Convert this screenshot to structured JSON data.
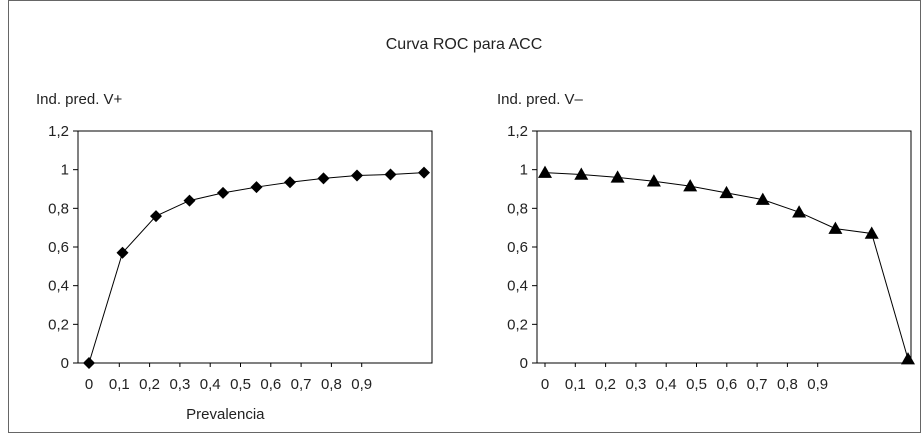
{
  "figure_title": "Curva ROC para ACC",
  "chart_data": [
    {
      "type": "line",
      "ylabel": "Ind. pred. V+",
      "xlabel": "Prevalencia",
      "ylim": [
        0,
        1.2
      ],
      "yticks": [
        "0",
        "0,2",
        "0,4",
        "0,6",
        "0,8",
        "1",
        "1,2"
      ],
      "xtick_labels": [
        "0",
        "0,1",
        "0,2",
        "0,3",
        "0,4",
        "0,5",
        "0,6",
        "0,7",
        "0,8",
        "0,9"
      ],
      "marker": "diamond",
      "color": "#000000",
      "x": [
        0,
        0.1,
        0.2,
        0.3,
        0.4,
        0.5,
        0.6,
        0.7,
        0.8,
        0.9,
        1.0
      ],
      "values": [
        0,
        0.57,
        0.76,
        0.84,
        0.88,
        0.91,
        0.935,
        0.955,
        0.97,
        0.975,
        0.985
      ]
    },
    {
      "type": "line",
      "ylabel": "Ind. pred. V–",
      "xlabel": "",
      "ylim": [
        0,
        1.2
      ],
      "yticks": [
        "0",
        "0,2",
        "0,4",
        "0,6",
        "0,8",
        "1",
        "1,2"
      ],
      "xtick_labels": [
        "0",
        "0,1",
        "0,2",
        "0,3",
        "0,4",
        "0,5",
        "0,6",
        "0,7",
        "0,8",
        "0,9"
      ],
      "marker": "triangle",
      "color": "#000000",
      "x": [
        0,
        0.1,
        0.2,
        0.3,
        0.4,
        0.5,
        0.6,
        0.7,
        0.8,
        0.9,
        1.0
      ],
      "values": [
        0.985,
        0.975,
        0.96,
        0.94,
        0.915,
        0.88,
        0.845,
        0.78,
        0.695,
        0.67,
        0.02
      ]
    }
  ]
}
